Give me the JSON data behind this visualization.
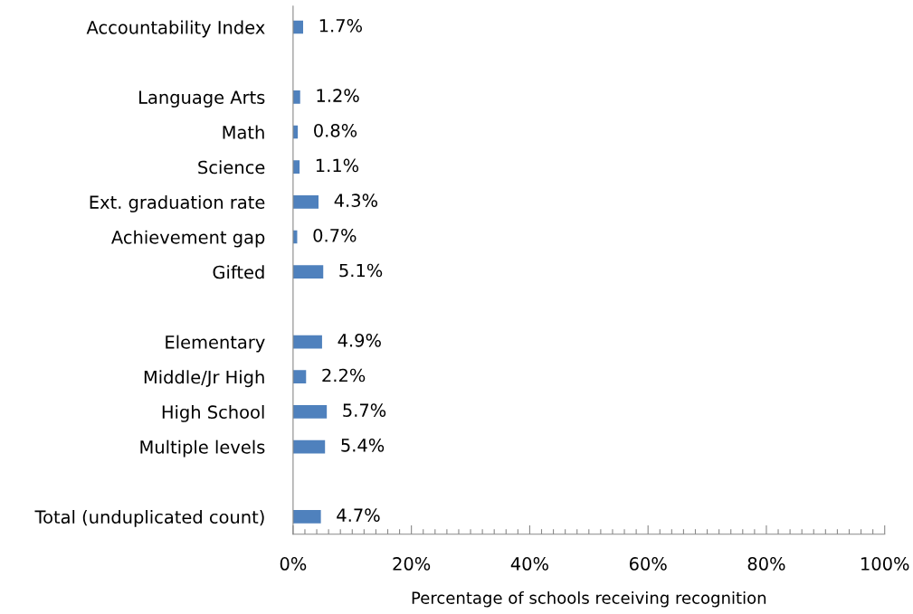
{
  "chart_data": {
    "type": "bar",
    "orientation": "horizontal",
    "xlabel": "Percentage of schools receiving recognition",
    "categories": [
      "Accountability Index",
      null,
      "Language Arts",
      "Math",
      "Science",
      "Ext. graduation rate",
      "Achievement gap",
      "Gifted",
      null,
      "Elementary",
      "Middle/Jr High",
      "High School",
      "Multiple levels",
      null,
      "Total (unduplicated count)"
    ],
    "values": [
      1.7,
      null,
      1.2,
      0.8,
      1.1,
      4.3,
      0.7,
      5.1,
      null,
      4.9,
      2.2,
      5.7,
      5.4,
      null,
      4.7
    ],
    "value_labels": [
      "1.7%",
      null,
      "1.2%",
      "0.8%",
      "1.1%",
      "4.3%",
      "0.7%",
      "5.1%",
      null,
      "4.9%",
      "2.2%",
      "5.7%",
      "5.4%",
      null,
      "4.7%"
    ],
    "color": "#4f81bd",
    "xlim": [
      0,
      100
    ],
    "xticks": [
      {
        "value": 0,
        "label": "0%"
      },
      {
        "value": 2,
        "label": null
      },
      {
        "value": 4,
        "label": null
      },
      {
        "value": 6,
        "label": null
      },
      {
        "value": 8,
        "label": null
      },
      {
        "value": 10,
        "label": null
      },
      {
        "value": 12,
        "label": null
      },
      {
        "value": 14,
        "label": null
      },
      {
        "value": 16,
        "label": null
      },
      {
        "value": 18,
        "label": null
      },
      {
        "value": 20,
        "label": "20%"
      },
      {
        "value": 22,
        "label": null
      },
      {
        "value": 24,
        "label": null
      },
      {
        "value": 26,
        "label": null
      },
      {
        "value": 28,
        "label": null
      },
      {
        "value": 30,
        "label": null
      },
      {
        "value": 32,
        "label": null
      },
      {
        "value": 34,
        "label": null
      },
      {
        "value": 36,
        "label": null
      },
      {
        "value": 38,
        "label": null
      },
      {
        "value": 40,
        "label": "40%"
      },
      {
        "value": 42,
        "label": null
      },
      {
        "value": 44,
        "label": null
      },
      {
        "value": 46,
        "label": null
      },
      {
        "value": 48,
        "label": null
      },
      {
        "value": 50,
        "label": null
      },
      {
        "value": 52,
        "label": null
      },
      {
        "value": 54,
        "label": null
      },
      {
        "value": 56,
        "label": null
      },
      {
        "value": 58,
        "label": null
      },
      {
        "value": 60,
        "label": "60%"
      },
      {
        "value": 62,
        "label": null
      },
      {
        "value": 64,
        "label": null
      },
      {
        "value": 66,
        "label": null
      },
      {
        "value": 68,
        "label": null
      },
      {
        "value": 70,
        "label": null
      },
      {
        "value": 72,
        "label": null
      },
      {
        "value": 74,
        "label": null
      },
      {
        "value": 76,
        "label": null
      },
      {
        "value": 78,
        "label": null
      },
      {
        "value": 80,
        "label": "80%"
      },
      {
        "value": 82,
        "label": null
      },
      {
        "value": 84,
        "label": null
      },
      {
        "value": 86,
        "label": null
      },
      {
        "value": 88,
        "label": null
      },
      {
        "value": 90,
        "label": null
      },
      {
        "value": 92,
        "label": null
      },
      {
        "value": 94,
        "label": null
      },
      {
        "value": 96,
        "label": null
      },
      {
        "value": 98,
        "label": null
      },
      {
        "value": 100,
        "label": "100%"
      }
    ],
    "grid": false,
    "legend": false
  }
}
